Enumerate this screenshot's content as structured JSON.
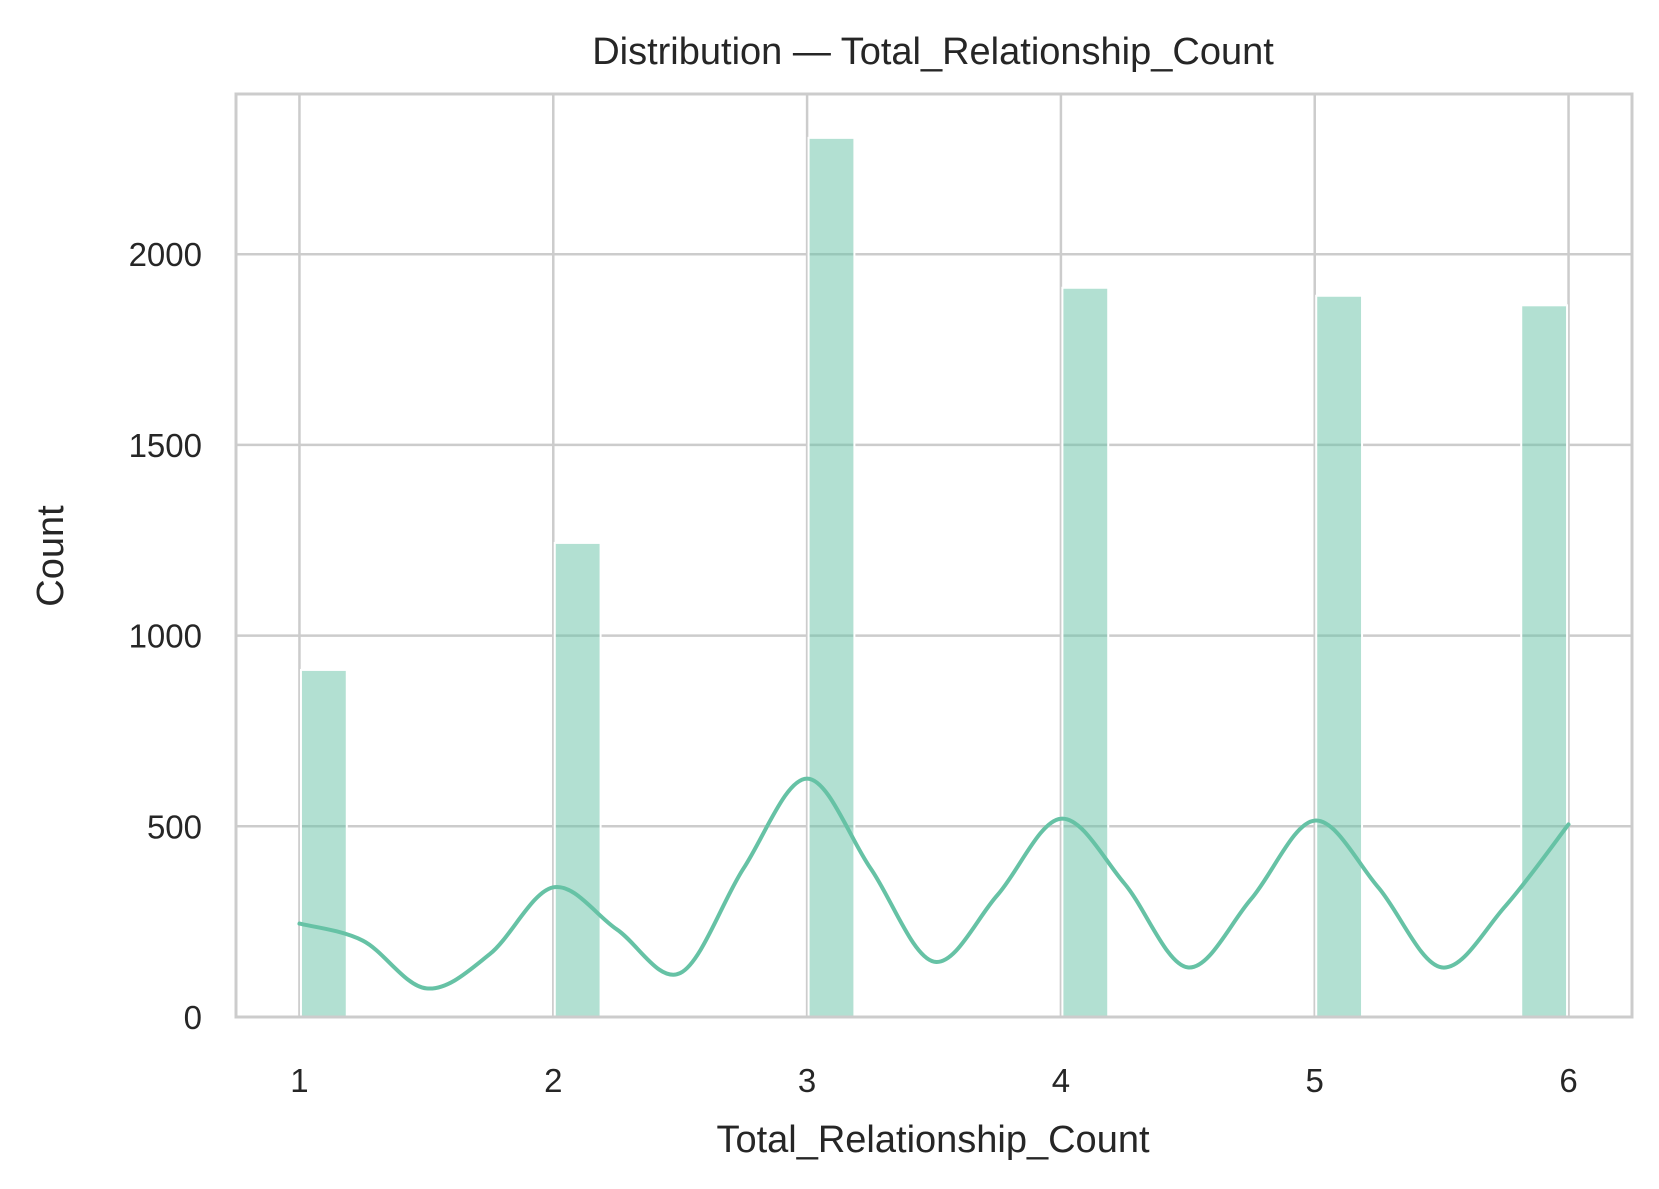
{
  "chart_data": {
    "type": "bar",
    "title": "Distribution — Total_Relationship_Count",
    "xlabel": "Total_Relationship_Count",
    "ylabel": "Count",
    "categories": [
      1,
      2,
      3,
      4,
      5,
      6
    ],
    "values": [
      910,
      1243,
      2305,
      1912,
      1891,
      1866
    ],
    "xlim": [
      0.75,
      6.25
    ],
    "ylim": [
      0,
      2420
    ],
    "xticks": [
      1,
      2,
      3,
      4,
      5,
      6
    ],
    "yticks": [
      0,
      500,
      1000,
      1500,
      2000
    ],
    "grid": true,
    "bar_color": "#66c2a5",
    "kde": {
      "x": [
        1,
        1.25,
        1.5,
        1.75,
        2,
        2.25,
        2.5,
        2.75,
        3,
        3.25,
        3.5,
        3.75,
        4,
        4.25,
        4.5,
        4.75,
        5,
        5.25,
        5.5,
        5.75,
        6
      ],
      "y": [
        245,
        200,
        75,
        165,
        340,
        230,
        115,
        390,
        625,
        390,
        145,
        320,
        520,
        350,
        130,
        310,
        515,
        340,
        130,
        290,
        505
      ]
    }
  }
}
